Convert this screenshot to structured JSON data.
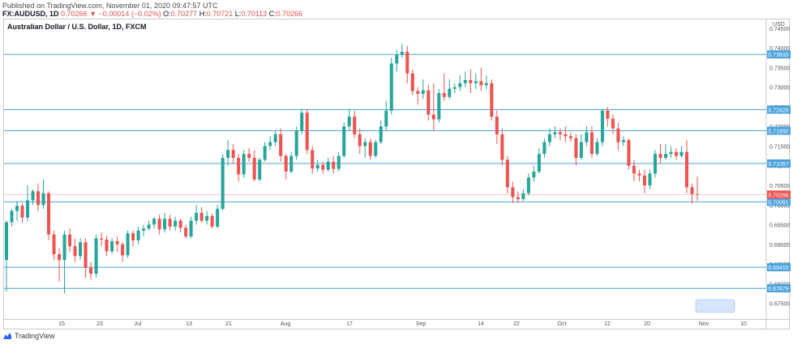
{
  "header": {
    "published": "Published on TradingView.com, November 01, 2020 09:47:57 UTC",
    "symbol": "FX:AUDUSD, 1D",
    "last": "0.70266",
    "change": "−0.00014 (−0.02%)",
    "open_label": "O:",
    "open": "0.70277",
    "high_label": "H:",
    "high": "0.70721",
    "low_label": "L:",
    "low": "0.70113",
    "close_label": "C:",
    "close": "0.70266"
  },
  "chart_title": "Australian Dollar / U.S. Dollar, 1D, FXCM",
  "currency": "USD",
  "footer": {
    "brand": "TradingView"
  },
  "colors": {
    "up": "#26a69a",
    "down": "#ef5350",
    "hline": "#4aa3df",
    "last": "#ef5350"
  },
  "chart_data": {
    "type": "candlestick",
    "ylim": [
      0.671,
      0.746
    ],
    "y_ticks": [
      "0.74500",
      "0.74000",
      "0.73500",
      "0.73000",
      "0.72500",
      "0.72000",
      "0.71500",
      "0.71000",
      "0.70500",
      "0.70000",
      "0.69500",
      "0.69000",
      "0.68500",
      "0.68000",
      "0.67500"
    ],
    "x_ticks": [
      "15",
      "23",
      "Jul",
      "13",
      "21",
      "Aug",
      "17",
      "Sep",
      "14",
      "22",
      "Oct",
      "12",
      "20",
      "Nov",
      "10"
    ],
    "horizontal_levels": [
      "0.73833",
      "0.72426",
      "0.71890",
      "0.71057",
      "0.70081",
      "0.68415",
      "0.67879"
    ],
    "last_price": "0.70266",
    "candles": [
      [
        0.686,
        0.6956,
        0.678,
        0.696
      ],
      [
        0.6956,
        0.6985,
        0.6945,
        0.699
      ],
      [
        0.6985,
        0.6998,
        0.696,
        0.701
      ],
      [
        0.6998,
        0.6968,
        0.6955,
        0.7005
      ],
      [
        0.6968,
        0.7012,
        0.6958,
        0.705
      ],
      [
        0.7012,
        0.7035,
        0.7,
        0.704
      ],
      [
        0.7035,
        0.7,
        0.6985,
        0.7055
      ],
      [
        0.7,
        0.703,
        0.699,
        0.7065
      ],
      [
        0.703,
        0.6925,
        0.691,
        0.7035
      ],
      [
        0.6925,
        0.6875,
        0.686,
        0.6935
      ],
      [
        0.6875,
        0.686,
        0.6805,
        0.689
      ],
      [
        0.686,
        0.6925,
        0.6775,
        0.6935
      ],
      [
        0.6925,
        0.6895,
        0.688,
        0.694
      ],
      [
        0.6895,
        0.687,
        0.6855,
        0.6915
      ],
      [
        0.687,
        0.6905,
        0.686,
        0.6915
      ],
      [
        0.6905,
        0.684,
        0.6815,
        0.6915
      ],
      [
        0.684,
        0.6825,
        0.681,
        0.6855
      ],
      [
        0.6825,
        0.6915,
        0.6815,
        0.6925
      ],
      [
        0.6915,
        0.6912,
        0.6895,
        0.693
      ],
      [
        0.6912,
        0.6882,
        0.687,
        0.6922
      ],
      [
        0.6882,
        0.6908,
        0.6875,
        0.6915
      ],
      [
        0.6908,
        0.69,
        0.688,
        0.692
      ],
      [
        0.69,
        0.6872,
        0.6855,
        0.6905
      ],
      [
        0.6872,
        0.6928,
        0.6865,
        0.6935
      ],
      [
        0.6928,
        0.691,
        0.6895,
        0.6935
      ],
      [
        0.691,
        0.6935,
        0.69,
        0.6945
      ],
      [
        0.6935,
        0.694,
        0.692,
        0.695
      ],
      [
        0.694,
        0.695,
        0.6935,
        0.696
      ],
      [
        0.695,
        0.6965,
        0.694,
        0.697
      ],
      [
        0.6965,
        0.6938,
        0.6925,
        0.6975
      ],
      [
        0.6938,
        0.6965,
        0.693,
        0.698
      ],
      [
        0.6965,
        0.6945,
        0.6935,
        0.6975
      ],
      [
        0.6945,
        0.696,
        0.6935,
        0.697
      ],
      [
        0.696,
        0.6942,
        0.693,
        0.6965
      ],
      [
        0.6942,
        0.692,
        0.6915,
        0.695
      ],
      [
        0.692,
        0.696,
        0.6915,
        0.697
      ],
      [
        0.696,
        0.698,
        0.695,
        0.7
      ],
      [
        0.698,
        0.696,
        0.6955,
        0.6995
      ],
      [
        0.696,
        0.6972,
        0.695,
        0.6985
      ],
      [
        0.6972,
        0.6945,
        0.694,
        0.6978
      ],
      [
        0.6945,
        0.699,
        0.694,
        0.7
      ],
      [
        0.699,
        0.712,
        0.6985,
        0.713
      ],
      [
        0.712,
        0.714,
        0.71,
        0.7165
      ],
      [
        0.714,
        0.712,
        0.7105,
        0.7155
      ],
      [
        0.712,
        0.7078,
        0.706,
        0.713
      ],
      [
        0.7078,
        0.713,
        0.707,
        0.714
      ],
      [
        0.713,
        0.712,
        0.711,
        0.7145
      ],
      [
        0.712,
        0.7065,
        0.706,
        0.714
      ],
      [
        0.7065,
        0.7115,
        0.706,
        0.712
      ],
      [
        0.7115,
        0.715,
        0.711,
        0.716
      ],
      [
        0.715,
        0.716,
        0.714,
        0.7175
      ],
      [
        0.716,
        0.718,
        0.715,
        0.719
      ],
      [
        0.718,
        0.7125,
        0.711,
        0.7195
      ],
      [
        0.7125,
        0.7085,
        0.7065,
        0.713
      ],
      [
        0.7085,
        0.7125,
        0.708,
        0.7135
      ],
      [
        0.7125,
        0.719,
        0.7115,
        0.72
      ],
      [
        0.719,
        0.7235,
        0.718,
        0.7245
      ],
      [
        0.7235,
        0.714,
        0.713,
        0.7245
      ],
      [
        0.714,
        0.7093,
        0.708,
        0.715
      ],
      [
        0.7093,
        0.7102,
        0.7085,
        0.7115
      ],
      [
        0.7102,
        0.709,
        0.708,
        0.711
      ],
      [
        0.709,
        0.711,
        0.7085,
        0.712
      ],
      [
        0.711,
        0.7092,
        0.708,
        0.7125
      ],
      [
        0.7092,
        0.7125,
        0.7085,
        0.7135
      ],
      [
        0.7125,
        0.72,
        0.712,
        0.721
      ],
      [
        0.72,
        0.7225,
        0.719,
        0.7245
      ],
      [
        0.7225,
        0.718,
        0.717,
        0.724
      ],
      [
        0.718,
        0.715,
        0.713,
        0.7195
      ],
      [
        0.715,
        0.716,
        0.712,
        0.717
      ],
      [
        0.716,
        0.7125,
        0.7115,
        0.717
      ],
      [
        0.7125,
        0.716,
        0.712,
        0.7165
      ],
      [
        0.716,
        0.72,
        0.7155,
        0.7215
      ],
      [
        0.72,
        0.724,
        0.719,
        0.7265
      ],
      [
        0.724,
        0.736,
        0.723,
        0.7375
      ],
      [
        0.736,
        0.7382,
        0.734,
        0.7395
      ],
      [
        0.7382,
        0.739,
        0.7375,
        0.741
      ],
      [
        0.739,
        0.7335,
        0.731,
        0.7405
      ],
      [
        0.7335,
        0.729,
        0.728,
        0.7345
      ],
      [
        0.729,
        0.7283,
        0.7255,
        0.73
      ],
      [
        0.7283,
        0.7292,
        0.727,
        0.732
      ],
      [
        0.7292,
        0.723,
        0.7215,
        0.7305
      ],
      [
        0.723,
        0.7218,
        0.719,
        0.731
      ],
      [
        0.7218,
        0.7285,
        0.721,
        0.7295
      ],
      [
        0.7285,
        0.7275,
        0.7265,
        0.7335
      ],
      [
        0.7275,
        0.7296,
        0.727,
        0.732
      ],
      [
        0.7296,
        0.73,
        0.7285,
        0.731
      ],
      [
        0.73,
        0.731,
        0.729,
        0.733
      ],
      [
        0.731,
        0.7318,
        0.73,
        0.734
      ],
      [
        0.7318,
        0.731,
        0.7285,
        0.7345
      ],
      [
        0.731,
        0.7315,
        0.7295,
        0.7335
      ],
      [
        0.7315,
        0.7305,
        0.729,
        0.735
      ],
      [
        0.7305,
        0.731,
        0.7295,
        0.733
      ],
      [
        0.731,
        0.7225,
        0.7215,
        0.732
      ],
      [
        0.7225,
        0.718,
        0.7155,
        0.724
      ],
      [
        0.718,
        0.7115,
        0.71,
        0.7195
      ],
      [
        0.7115,
        0.7045,
        0.703,
        0.7125
      ],
      [
        0.7045,
        0.702,
        0.7005,
        0.706
      ],
      [
        0.702,
        0.7015,
        0.7005,
        0.7035
      ],
      [
        0.7015,
        0.703,
        0.701,
        0.704
      ],
      [
        0.703,
        0.707,
        0.7025,
        0.708
      ],
      [
        0.707,
        0.7085,
        0.706,
        0.71
      ],
      [
        0.7085,
        0.713,
        0.708,
        0.7145
      ],
      [
        0.713,
        0.716,
        0.712,
        0.717
      ],
      [
        0.716,
        0.718,
        0.715,
        0.7195
      ],
      [
        0.718,
        0.7185,
        0.717,
        0.72
      ],
      [
        0.7185,
        0.718,
        0.7165,
        0.7195
      ],
      [
        0.718,
        0.7175,
        0.716,
        0.72
      ],
      [
        0.7175,
        0.717,
        0.716,
        0.7185
      ],
      [
        0.717,
        0.712,
        0.71,
        0.718
      ],
      [
        0.712,
        0.716,
        0.7115,
        0.718
      ],
      [
        0.716,
        0.7185,
        0.715,
        0.72
      ],
      [
        0.7185,
        0.713,
        0.712,
        0.72
      ],
      [
        0.713,
        0.716,
        0.7125,
        0.717
      ],
      [
        0.716,
        0.724,
        0.715,
        0.7245
      ],
      [
        0.724,
        0.722,
        0.72,
        0.725
      ],
      [
        0.722,
        0.7195,
        0.718,
        0.723
      ],
      [
        0.7195,
        0.716,
        0.714,
        0.721
      ],
      [
        0.716,
        0.7165,
        0.715,
        0.7175
      ],
      [
        0.7165,
        0.71,
        0.709,
        0.717
      ],
      [
        0.71,
        0.708,
        0.706,
        0.7115
      ],
      [
        0.708,
        0.7075,
        0.706,
        0.709
      ],
      [
        0.7075,
        0.705,
        0.703,
        0.709
      ],
      [
        0.705,
        0.708,
        0.704,
        0.709
      ],
      [
        0.708,
        0.713,
        0.707,
        0.714
      ],
      [
        0.713,
        0.712,
        0.7105,
        0.7155
      ],
      [
        0.712,
        0.713,
        0.7115,
        0.7155
      ],
      [
        0.713,
        0.7135,
        0.712,
        0.715
      ],
      [
        0.7135,
        0.7125,
        0.7115,
        0.7145
      ],
      [
        0.7125,
        0.7135,
        0.712,
        0.715
      ],
      [
        0.7135,
        0.7045,
        0.703,
        0.7165
      ],
      [
        0.7045,
        0.7028,
        0.7003,
        0.7055
      ],
      [
        0.7028,
        0.70266,
        0.70113,
        0.70721
      ]
    ]
  }
}
